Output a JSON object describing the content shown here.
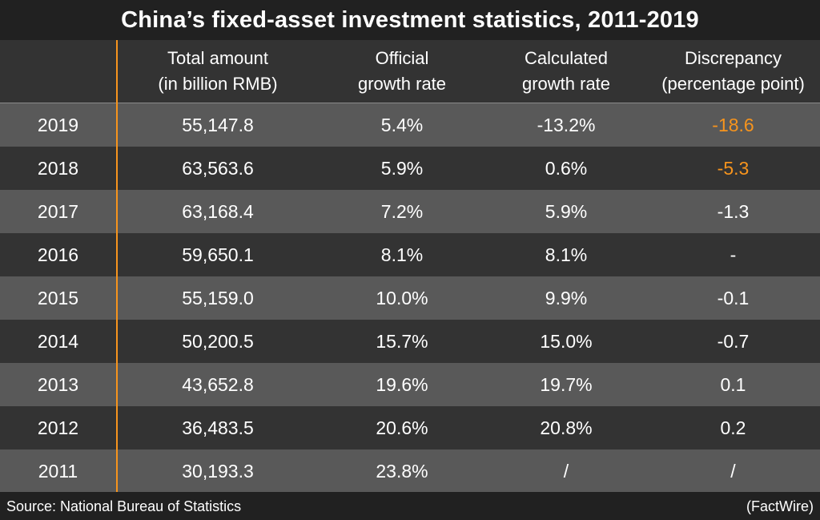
{
  "chart_data": {
    "type": "table",
    "title": "China’s fixed-asset investment statistics, 2011-2019",
    "columns": [
      {
        "line1": "",
        "line2": ""
      },
      {
        "line1": "Total amount",
        "line2": "(in billion RMB)"
      },
      {
        "line1": "Official",
        "line2": "growth rate"
      },
      {
        "line1": "Calculated",
        "line2": "growth rate"
      },
      {
        "line1": "Discrepancy",
        "line2": "(percentage point)"
      }
    ],
    "rows": [
      {
        "year": "2019",
        "total": "55,147.8",
        "official": "5.4%",
        "calculated": "-13.2%",
        "discrepancy": "-18.6",
        "highlight": true
      },
      {
        "year": "2018",
        "total": "63,563.6",
        "official": "5.9%",
        "calculated": "0.6%",
        "discrepancy": "-5.3",
        "highlight": true
      },
      {
        "year": "2017",
        "total": "63,168.4",
        "official": "7.2%",
        "calculated": "5.9%",
        "discrepancy": "-1.3",
        "highlight": false
      },
      {
        "year": "2016",
        "total": "59,650.1",
        "official": "8.1%",
        "calculated": "8.1%",
        "discrepancy": "-",
        "highlight": false
      },
      {
        "year": "2015",
        "total": "55,159.0",
        "official": "10.0%",
        "calculated": "9.9%",
        "discrepancy": "-0.1",
        "highlight": false
      },
      {
        "year": "2014",
        "total": "50,200.5",
        "official": "15.7%",
        "calculated": "15.0%",
        "discrepancy": "-0.7",
        "highlight": false
      },
      {
        "year": "2013",
        "total": "43,652.8",
        "official": "19.6%",
        "calculated": "19.7%",
        "discrepancy": "0.1",
        "highlight": false
      },
      {
        "year": "2012",
        "total": "36,483.5",
        "official": "20.6%",
        "calculated": "20.8%",
        "discrepancy": "0.2",
        "highlight": false
      },
      {
        "year": "2011",
        "total": "30,193.3",
        "official": "23.8%",
        "calculated": "/",
        "discrepancy": "/",
        "highlight": false
      }
    ],
    "source": "Source: National Bureau of Statistics",
    "credit": "(FactWire)"
  },
  "colors": {
    "highlight": "#f7941d",
    "row_light": "#595959",
    "row_dark": "#333333",
    "title_bg": "#212121"
  }
}
